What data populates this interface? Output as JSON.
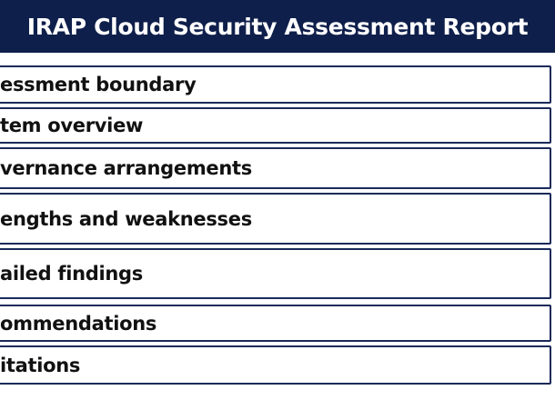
{
  "header": {
    "title": "IRAP Cloud Security Assessment Report"
  },
  "items": [
    "essment boundary",
    "tem overview",
    "vernance arrangements",
    "engths and weaknesses",
    "ailed findings",
    "ommendations",
    "itations"
  ]
}
